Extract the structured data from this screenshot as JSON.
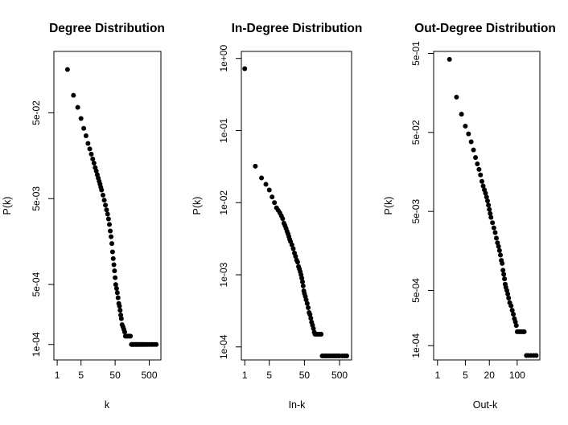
{
  "chart_data": [
    {
      "type": "scatter",
      "title": "Degree Distribution",
      "xlabel": "k",
      "ylabel": "P(k)",
      "xscale": "log",
      "yscale": "log",
      "xlim": [
        0.8,
        1100
      ],
      "ylim": [
        6.6e-05,
        0.26
      ],
      "xticks": [
        {
          "value": 1,
          "label": "1"
        },
        {
          "value": 5,
          "label": "5"
        },
        {
          "value": 50,
          "label": "50"
        },
        {
          "value": 500,
          "label": "500"
        }
      ],
      "yticks": [
        {
          "value": 0.0001,
          "label": "1e-04"
        },
        {
          "value": 0.0005,
          "label": "5e-04"
        },
        {
          "value": 0.005,
          "label": "5e-03"
        },
        {
          "value": 0.05,
          "label": "5e-02"
        }
      ],
      "x": [
        2,
        3,
        4,
        5,
        6,
        7,
        8,
        9,
        10,
        11,
        12,
        13,
        14,
        15,
        16,
        17,
        18,
        19,
        20,
        22,
        24,
        26,
        28,
        30,
        32,
        34,
        36,
        38,
        40,
        42,
        44,
        46,
        48,
        50,
        52,
        55,
        58,
        61,
        64,
        67,
        70,
        73,
        76,
        80,
        85,
        90,
        95,
        100,
        105,
        110,
        120,
        130,
        140,
        150,
        160,
        170,
        180,
        200,
        210,
        220,
        240,
        260,
        280,
        300,
        320,
        350,
        380,
        420,
        460,
        520,
        600,
        700,
        800
      ],
      "y": [
        0.16,
        0.08,
        0.058,
        0.043,
        0.033,
        0.027,
        0.022,
        0.019,
        0.0165,
        0.0145,
        0.013,
        0.0115,
        0.0105,
        0.0095,
        0.0087,
        0.008,
        0.0074,
        0.0068,
        0.0063,
        0.0055,
        0.0048,
        0.0042,
        0.0037,
        0.0033,
        0.0029,
        0.0025,
        0.0021,
        0.0018,
        0.0015,
        0.0012,
        0.001,
        0.00085,
        0.00072,
        0.0006,
        0.0005,
        0.00045,
        0.0004,
        0.00035,
        0.0003,
        0.00028,
        0.00025,
        0.00022,
        0.0002,
        0.00017,
        0.00016,
        0.00015,
        0.00014,
        0.000125,
        0.000125,
        0.000125,
        0.000125,
        0.000125,
        0.000125,
        0.0001,
        0.0001,
        0.0001,
        0.0001,
        0.0001,
        0.0001,
        0.0001,
        0.0001,
        0.0001,
        0.0001,
        0.0001,
        0.0001,
        0.0001,
        0.0001,
        0.0001,
        0.0001,
        0.0001,
        0.0001,
        0.0001,
        0.0001
      ],
      "grid": false,
      "legend": "none"
    },
    {
      "type": "scatter",
      "title": "In-Degree Distribution",
      "xlabel": "In-k",
      "ylabel": "P(k)",
      "xscale": "log",
      "yscale": "log",
      "xlim": [
        0.8,
        1100
      ],
      "ylim": [
        6.6e-05,
        1.25
      ],
      "xticks": [
        {
          "value": 1,
          "label": "1"
        },
        {
          "value": 5,
          "label": "5"
        },
        {
          "value": 50,
          "label": "50"
        },
        {
          "value": 500,
          "label": "500"
        }
      ],
      "yticks": [
        {
          "value": 0.0001,
          "label": "1e-04"
        },
        {
          "value": 0.001,
          "label": "1e-03"
        },
        {
          "value": 0.01,
          "label": "1e-02"
        },
        {
          "value": 0.1,
          "label": "1e-01"
        },
        {
          "value": 1,
          "label": "1e+00"
        }
      ],
      "x": [
        1,
        2,
        3,
        4,
        5,
        6,
        7,
        8,
        9,
        10,
        11,
        12,
        13,
        14,
        15,
        16,
        17,
        18,
        19,
        20,
        22,
        24,
        26,
        28,
        30,
        32,
        34,
        36,
        38,
        40,
        42,
        44,
        46,
        48,
        50,
        53,
        56,
        60,
        64,
        68,
        72,
        76,
        80,
        85,
        90,
        95,
        100,
        110,
        120,
        130,
        140,
        150,
        160,
        180,
        200,
        220,
        250,
        280,
        320,
        360,
        400,
        450,
        500,
        600,
        700,
        800
      ],
      "y": [
        0.72,
        0.032,
        0.022,
        0.018,
        0.015,
        0.012,
        0.01,
        0.0085,
        0.0078,
        0.0072,
        0.0066,
        0.006,
        0.0052,
        0.0048,
        0.0044,
        0.004,
        0.0037,
        0.0034,
        0.0031,
        0.0029,
        0.0026,
        0.0023,
        0.002,
        0.0018,
        0.0016,
        0.0015,
        0.0013,
        0.0012,
        0.0011,
        0.001,
        0.0009,
        0.0008,
        0.0007,
        0.0006,
        0.00055,
        0.0005,
        0.00045,
        0.0004,
        0.00035,
        0.0003,
        0.00028,
        0.00025,
        0.00022,
        0.0002,
        0.00018,
        0.00016,
        0.00015,
        0.00015,
        0.00015,
        0.00015,
        0.00015,
        0.00015,
        7.5e-05,
        7.5e-05,
        7.5e-05,
        7.5e-05,
        7.5e-05,
        7.5e-05,
        7.5e-05,
        7.5e-05,
        7.5e-05,
        7.5e-05,
        7.5e-05,
        7.5e-05,
        7.5e-05,
        7.5e-05
      ],
      "grid": false,
      "legend": "none"
    },
    {
      "type": "scatter",
      "title": "Out-Degree Distribution",
      "xlabel": "Out-k",
      "ylabel": "P(k)",
      "xscale": "log",
      "yscale": "log",
      "xlim": [
        0.8,
        370
      ],
      "ylim": [
        6.6e-05,
        0.53
      ],
      "xticks": [
        {
          "value": 1,
          "label": "1"
        },
        {
          "value": 5,
          "label": "5"
        },
        {
          "value": 20,
          "label": "20"
        },
        {
          "value": 100,
          "label": "100"
        }
      ],
      "yticks": [
        {
          "value": 0.0001,
          "label": "1e-04"
        },
        {
          "value": 0.0005,
          "label": "5e-04"
        },
        {
          "value": 0.005,
          "label": "5e-03"
        },
        {
          "value": 0.05,
          "label": "5e-02"
        },
        {
          "value": 0.5,
          "label": "5e-01"
        }
      ],
      "x": [
        2,
        3,
        4,
        5,
        6,
        7,
        8,
        9,
        10,
        11,
        12,
        13,
        14,
        15,
        16,
        17,
        18,
        19,
        20,
        21,
        22,
        24,
        26,
        28,
        30,
        32,
        34,
        36,
        38,
        40,
        42,
        44,
        46,
        48,
        50,
        52,
        55,
        58,
        61,
        65,
        70,
        75,
        80,
        85,
        90,
        95,
        100,
        110,
        120,
        130,
        140,
        150,
        170,
        190,
        220,
        260,
        300
      ],
      "y": [
        0.42,
        0.14,
        0.085,
        0.06,
        0.048,
        0.038,
        0.03,
        0.024,
        0.02,
        0.017,
        0.0145,
        0.012,
        0.0105,
        0.0094,
        0.0085,
        0.0076,
        0.0068,
        0.006,
        0.0053,
        0.0047,
        0.0042,
        0.0036,
        0.0031,
        0.0027,
        0.0023,
        0.002,
        0.0018,
        0.0016,
        0.0014,
        0.0012,
        0.0011,
        0.0009,
        0.0008,
        0.0007,
        0.0006,
        0.00055,
        0.0005,
        0.00045,
        0.0004,
        0.00035,
        0.00032,
        0.00028,
        0.00025,
        0.00022,
        0.0002,
        0.00018,
        0.00015,
        0.00015,
        0.00015,
        0.00015,
        0.00015,
        0.00015,
        7.5e-05,
        7.5e-05,
        7.5e-05,
        7.5e-05,
        7.5e-05
      ],
      "grid": false,
      "legend": "none"
    }
  ]
}
